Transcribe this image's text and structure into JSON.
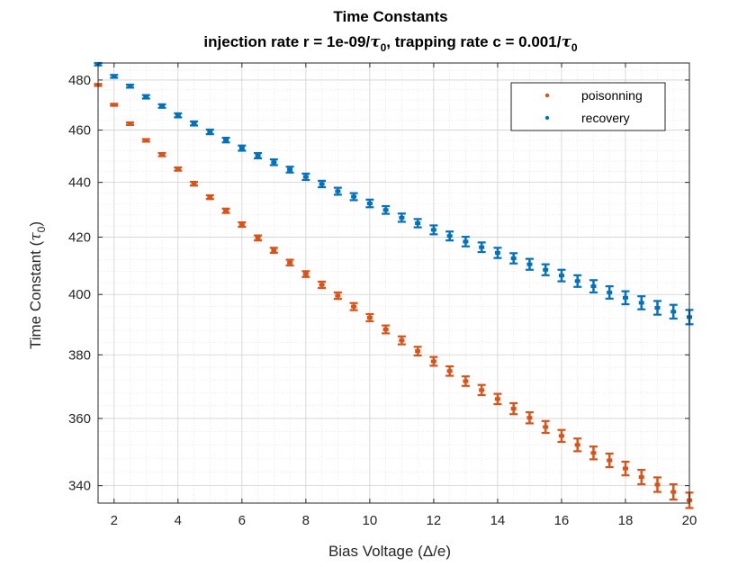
{
  "chart_data": {
    "type": "scatter",
    "title": "Time Constants",
    "subtitle_parts": [
      "injection rate r = 1e-09/",
      "τ",
      "0",
      ", trapping rate c = 0.001/",
      "τ",
      "0"
    ],
    "xlabel_parts": [
      "Bias Voltage (",
      "Δ",
      "/e)"
    ],
    "ylabel_parts": [
      "Time Constant (",
      "τ",
      "0",
      ")"
    ],
    "xlim": [
      1.5,
      20
    ],
    "ylim": [
      335,
      487
    ],
    "y_scale": "log",
    "x_ticks": [
      2,
      4,
      6,
      8,
      10,
      12,
      14,
      16,
      18,
      20
    ],
    "y_ticks": [
      340,
      360,
      380,
      400,
      420,
      440,
      460,
      480
    ],
    "x_tick_labels": [
      "2",
      "4",
      "6",
      "8",
      "10",
      "12",
      "14",
      "16",
      "18",
      "20"
    ],
    "y_tick_labels": [
      "340",
      "360",
      "380",
      "400",
      "420",
      "440",
      "460",
      "480"
    ],
    "grid": true,
    "minor_grid": true,
    "legend_position": "top-right",
    "x": [
      1.5,
      2.0,
      2.5,
      3.0,
      3.5,
      4.0,
      4.5,
      5.0,
      5.5,
      6.0,
      6.5,
      7.0,
      7.5,
      8.0,
      8.5,
      9.0,
      9.5,
      10.0,
      10.5,
      11.0,
      11.5,
      12.0,
      12.5,
      13.0,
      13.5,
      14.0,
      14.5,
      15.0,
      15.5,
      16.0,
      16.5,
      17.0,
      17.5,
      18.0,
      18.5,
      19.0,
      19.5,
      20.0
    ],
    "series": [
      {
        "name": "poisonning",
        "color": "#D95319",
        "values": [
          478.0,
          470.0,
          462.5,
          456.0,
          450.5,
          445.0,
          439.5,
          434.5,
          429.5,
          424.5,
          419.7,
          415.3,
          411.0,
          407.0,
          403.3,
          399.6,
          395.9,
          392.2,
          388.3,
          384.7,
          381.2,
          377.9,
          374.8,
          371.6,
          368.8,
          366.0,
          363.0,
          360.2,
          357.4,
          354.7,
          352.0,
          349.6,
          347.4,
          345.0,
          342.5,
          340.3,
          338.2,
          335.8
        ],
        "error": [
          0.4,
          0.4,
          0.5,
          0.5,
          0.6,
          0.6,
          0.7,
          0.7,
          0.8,
          0.8,
          0.9,
          0.9,
          1.0,
          1.0,
          1.1,
          1.1,
          1.2,
          1.2,
          1.3,
          1.3,
          1.4,
          1.4,
          1.5,
          1.5,
          1.6,
          1.6,
          1.7,
          1.7,
          1.8,
          1.8,
          1.9,
          1.9,
          2.0,
          2.0,
          2.1,
          2.1,
          2.2,
          2.2
        ]
      },
      {
        "name": "recovery",
        "color": "#0072BD",
        "values": [
          486.5,
          481.5,
          477.5,
          473.2,
          469.5,
          465.8,
          462.6,
          459.3,
          456.1,
          453.0,
          450.1,
          447.6,
          444.8,
          442.1,
          439.4,
          436.7,
          434.7,
          432.2,
          429.8,
          427.0,
          425.0,
          422.6,
          420.4,
          418.4,
          416.4,
          414.4,
          412.5,
          410.4,
          408.5,
          406.5,
          404.6,
          402.8,
          400.7,
          398.9,
          397.2,
          395.5,
          394.2,
          392.4
        ],
        "error": [
          0.5,
          0.6,
          0.6,
          0.7,
          0.7,
          0.8,
          0.8,
          0.9,
          0.9,
          1.0,
          1.0,
          1.1,
          1.1,
          1.2,
          1.2,
          1.3,
          1.3,
          1.4,
          1.4,
          1.5,
          1.5,
          1.6,
          1.6,
          1.7,
          1.7,
          1.8,
          1.8,
          1.9,
          1.9,
          2.0,
          2.0,
          2.1,
          2.1,
          2.2,
          2.2,
          2.3,
          2.3,
          2.4
        ]
      }
    ]
  }
}
